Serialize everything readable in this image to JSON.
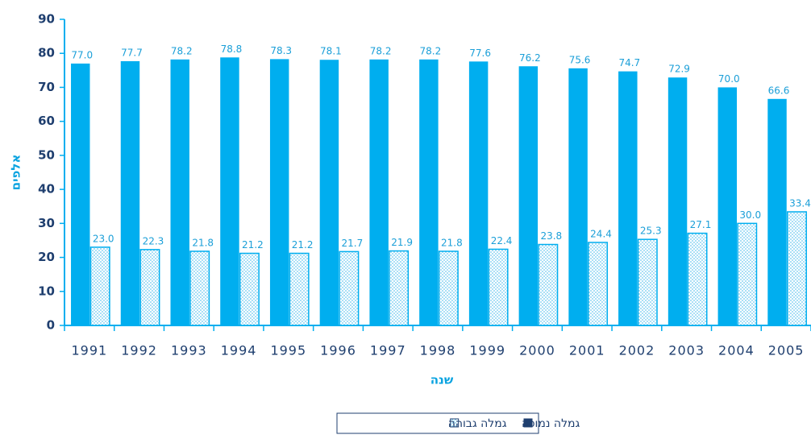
{
  "chart_data": {
    "type": "bar",
    "categories": [
      "1991",
      "1992",
      "1993",
      "1994",
      "1995",
      "1996",
      "1997",
      "1998",
      "1999",
      "2000",
      "2001",
      "2002",
      "2003",
      "2004",
      "2005"
    ],
    "series": [
      {
        "name": "גמלה נמוכה",
        "color": "#00aeef",
        "values": [
          77.0,
          77.7,
          78.2,
          78.8,
          78.3,
          78.1,
          78.2,
          78.2,
          77.6,
          76.2,
          75.6,
          74.7,
          72.9,
          70.0,
          66.6
        ],
        "value_labels": [
          "77.0",
          "77.7",
          "78.2",
          "78.8",
          "78.3",
          "78.1",
          "78.2",
          "78.2",
          "77.6",
          "76.2",
          "75.6",
          "74.7",
          "72.9",
          "70.0",
          "66.6"
        ]
      },
      {
        "name": "גמלה גבוהה",
        "color": "#00aeef",
        "values": [
          23.0,
          22.3,
          21.8,
          21.2,
          21.2,
          21.7,
          21.9,
          21.8,
          22.4,
          23.8,
          24.4,
          25.3,
          27.1,
          30.0,
          33.4
        ],
        "value_labels": [
          "23.0",
          "22.3",
          "21.8",
          "21.2",
          "21.2",
          "21.7",
          "21.9",
          "21.8",
          "22.4",
          "23.8",
          "24.4",
          "25.3",
          "27.1",
          "30.0",
          "33.4"
        ]
      }
    ],
    "ylim": [
      0,
      90
    ],
    "yticks": [
      0,
      10,
      20,
      30,
      40,
      50,
      60,
      70,
      80,
      90
    ],
    "x_label": "שנה",
    "y_label": "אלפים",
    "grid": false
  }
}
